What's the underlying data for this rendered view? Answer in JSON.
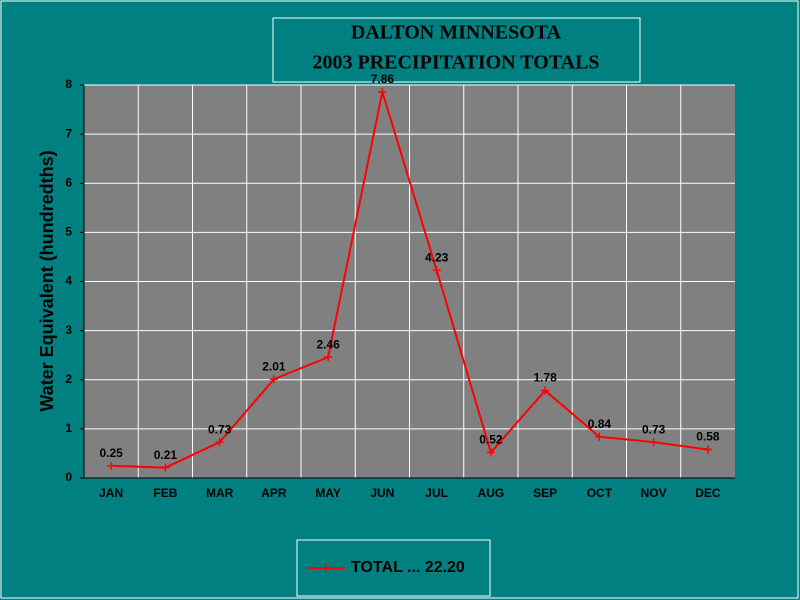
{
  "chart_data": {
    "type": "line",
    "title": [
      "DALTON MINNESOTA",
      "2003 PRECIPITATION TOTALS"
    ],
    "y_label": "Water Equivalent (hundredths)",
    "categories": [
      "JAN",
      "FEB",
      "MAR",
      "APR",
      "MAY",
      "JUN",
      "JUL",
      "AUG",
      "SEP",
      "OCT",
      "NOV",
      "DEC"
    ],
    "series": [
      {
        "name": "TOTAL ... 22.20",
        "color": "#ff0000",
        "values": [
          0.25,
          0.21,
          0.73,
          2.01,
          2.46,
          7.86,
          4.23,
          0.52,
          1.78,
          0.84,
          0.73,
          0.58
        ]
      }
    ],
    "ylim": [
      0,
      8
    ],
    "yticks": [
      0,
      1,
      2,
      3,
      4,
      5,
      6,
      7,
      8
    ],
    "grid": true,
    "legend": "bottom",
    "data_labels": true
  }
}
